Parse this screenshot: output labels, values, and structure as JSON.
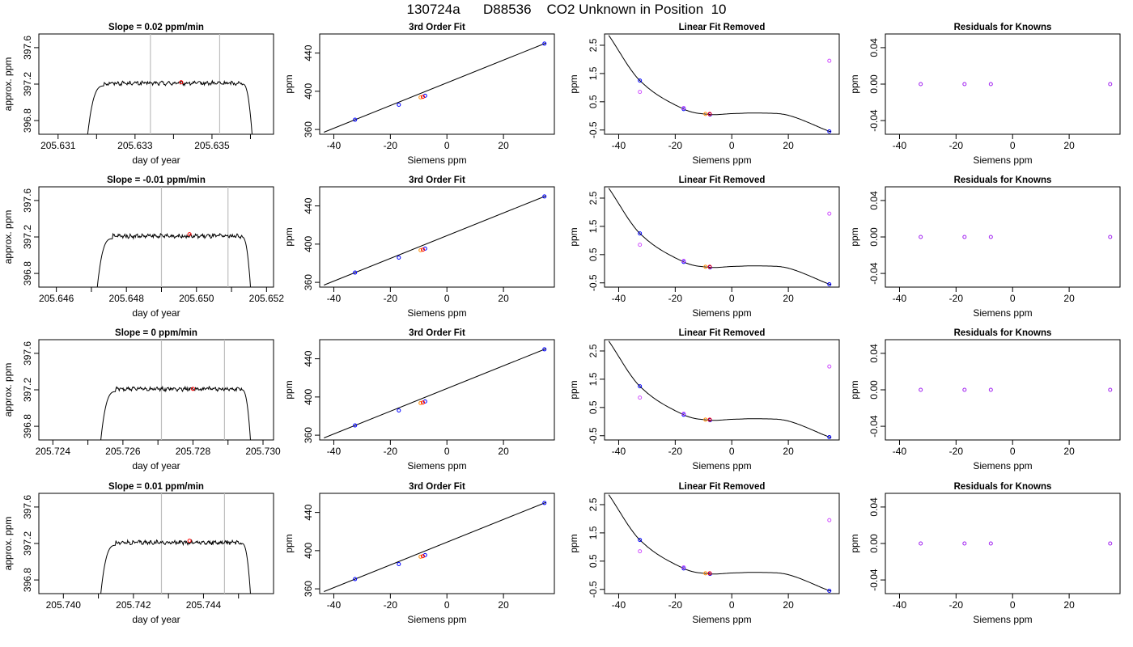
{
  "page_title": "130724a      D88536    CO2 Unknown in Position  10",
  "colors": {
    "axis": "#000000",
    "trace": "#000000",
    "marker_line": "#bebebe",
    "highlight": "#ff0000",
    "known_blue": "#0000ff",
    "known_orange": "#ff8c00",
    "residual_purple": "#a020f0",
    "unknown_magenta": "#d050ff"
  },
  "chart_data": [
    {
      "type": "line",
      "row": 0,
      "panel": "trace",
      "title": "Slope =  0.02  ppm/min",
      "xlabel": "day of year",
      "ylabel": "approx. ppm",
      "xlim": [
        205.6305,
        205.6366
      ],
      "ylim": [
        396.65,
        397.75
      ],
      "xticks": [
        205.631,
        205.632,
        205.633,
        205.634,
        205.635,
        205.636
      ],
      "xtick_labels": [
        "205.631",
        "",
        "205.633",
        "",
        "205.635",
        ""
      ],
      "yticks": [
        396.8,
        397.2,
        397.6
      ],
      "ytick_labels": [
        "396.8",
        "397.2",
        "397.6"
      ],
      "vlines": [
        205.6334,
        205.6352
      ],
      "highlight": {
        "x": 205.6342,
        "y": 397.22
      },
      "t_start": 205.6317,
      "t_plateau": 205.6322,
      "t_drop": 205.6358,
      "t_end": 205.6361
    },
    {
      "type": "line",
      "row": 0,
      "panel": "fit",
      "title": "3rd Order Fit",
      "xlabel": "Siemens ppm",
      "ylabel": "ppm",
      "xlim": [
        -45,
        38
      ],
      "ylim": [
        355,
        460
      ],
      "xticks": [
        -40,
        -20,
        0,
        20
      ],
      "yticks": [
        360,
        400,
        440
      ]
    },
    {
      "type": "line",
      "row": 0,
      "panel": "resid",
      "title": "Linear Fit Removed",
      "xlabel": "Siemens ppm",
      "ylabel": "ppm",
      "xlim": [
        -45,
        38
      ],
      "ylim": [
        -0.65,
        2.9
      ],
      "xticks": [
        -40,
        -20,
        0,
        20
      ],
      "yticks": [
        -0.5,
        0.5,
        1.5,
        2.5
      ]
    },
    {
      "type": "scatter",
      "row": 0,
      "panel": "known",
      "title": "Residuals for Knowns",
      "xlabel": "Siemens ppm",
      "ylabel": "ppm",
      "xlim": [
        -45,
        38
      ],
      "ylim": [
        -0.055,
        0.055
      ],
      "xticks": [
        -40,
        -20,
        0,
        20
      ],
      "yticks": [
        -0.04,
        0.0,
        0.04
      ],
      "ytick_labels": [
        "-0.04",
        "0.00",
        "0.04"
      ]
    },
    {
      "type": "line",
      "row": 1,
      "panel": "trace",
      "title": "Slope =  -0.01  ppm/min",
      "xlabel": "day of year",
      "ylabel": "approx. ppm",
      "xlim": [
        205.6455,
        205.6522
      ],
      "ylim": [
        396.65,
        397.75
      ],
      "xticks": [
        205.646,
        205.647,
        205.648,
        205.649,
        205.65,
        205.651,
        205.652
      ],
      "xtick_labels": [
        "205.646",
        "",
        "205.648",
        "",
        "205.650",
        "",
        "205.652"
      ],
      "yticks": [
        396.8,
        397.2,
        397.6
      ],
      "ytick_labels": [
        "396.8",
        "397.2",
        "397.6"
      ],
      "vlines": [
        205.649,
        205.6509
      ],
      "highlight": {
        "x": 205.6498,
        "y": 397.23
      },
      "t_start": 205.6471,
      "t_plateau": 205.6476,
      "t_drop": 205.6513,
      "t_end": 205.6516
    },
    {
      "type": "line",
      "row": 1,
      "panel": "fit",
      "title": "3rd Order Fit",
      "xlabel": "Siemens ppm",
      "ylabel": "ppm",
      "xlim": [
        -45,
        38
      ],
      "ylim": [
        355,
        460
      ],
      "xticks": [
        -40,
        -20,
        0,
        20
      ],
      "yticks": [
        360,
        400,
        440
      ]
    },
    {
      "type": "line",
      "row": 1,
      "panel": "resid",
      "title": "Linear Fit Removed",
      "xlabel": "Siemens ppm",
      "ylabel": "ppm",
      "xlim": [
        -45,
        38
      ],
      "ylim": [
        -0.65,
        2.9
      ],
      "xticks": [
        -40,
        -20,
        0,
        20
      ],
      "yticks": [
        -0.5,
        0.5,
        1.5,
        2.5
      ]
    },
    {
      "type": "scatter",
      "row": 1,
      "panel": "known",
      "title": "Residuals for Knowns",
      "xlabel": "Siemens ppm",
      "ylabel": "ppm",
      "xlim": [
        -45,
        38
      ],
      "ylim": [
        -0.055,
        0.055
      ],
      "xticks": [
        -40,
        -20,
        0,
        20
      ],
      "yticks": [
        -0.04,
        0.0,
        0.04
      ],
      "ytick_labels": [
        "-0.04",
        "0.00",
        "0.04"
      ]
    },
    {
      "type": "line",
      "row": 2,
      "panel": "trace",
      "title": "Slope =  0  ppm/min",
      "xlabel": "day of year",
      "ylabel": "approx. ppm",
      "xlim": [
        205.7236,
        205.7303
      ],
      "ylim": [
        396.65,
        397.75
      ],
      "xticks": [
        205.724,
        205.725,
        205.726,
        205.727,
        205.728,
        205.729,
        205.73
      ],
      "xtick_labels": [
        "205.724",
        "",
        "205.726",
        "",
        "205.728",
        "",
        "205.730"
      ],
      "yticks": [
        396.8,
        397.2,
        397.6
      ],
      "ytick_labels": [
        "396.8",
        "397.2",
        "397.6"
      ],
      "vlines": [
        205.7271,
        205.7289
      ],
      "highlight": {
        "x": 205.728,
        "y": 397.21
      },
      "t_start": 205.7253,
      "t_plateau": 205.7258,
      "t_drop": 205.7294,
      "t_end": 205.7297
    },
    {
      "type": "line",
      "row": 2,
      "panel": "fit",
      "title": "3rd Order Fit",
      "xlabel": "Siemens ppm",
      "ylabel": "ppm",
      "xlim": [
        -45,
        38
      ],
      "ylim": [
        355,
        460
      ],
      "xticks": [
        -40,
        -20,
        0,
        20
      ],
      "yticks": [
        360,
        400,
        440
      ]
    },
    {
      "type": "line",
      "row": 2,
      "panel": "resid",
      "title": "Linear Fit Removed",
      "xlabel": "Siemens ppm",
      "ylabel": "ppm",
      "xlim": [
        -45,
        38
      ],
      "ylim": [
        -0.65,
        2.9
      ],
      "xticks": [
        -40,
        -20,
        0,
        20
      ],
      "yticks": [
        -0.5,
        0.5,
        1.5,
        2.5
      ]
    },
    {
      "type": "scatter",
      "row": 2,
      "panel": "known",
      "title": "Residuals for Knowns",
      "xlabel": "Siemens ppm",
      "ylabel": "ppm",
      "xlim": [
        -45,
        38
      ],
      "ylim": [
        -0.055,
        0.055
      ],
      "xticks": [
        -40,
        -20,
        0,
        20
      ],
      "yticks": [
        -0.04,
        0.0,
        0.04
      ],
      "ytick_labels": [
        "-0.04",
        "0.00",
        "0.04"
      ]
    },
    {
      "type": "line",
      "row": 3,
      "panel": "trace",
      "title": "Slope =  0.01  ppm/min",
      "xlabel": "day of year",
      "ylabel": "approx. ppm",
      "xlim": [
        205.7393,
        205.746
      ],
      "ylim": [
        396.65,
        397.75
      ],
      "xticks": [
        205.74,
        205.741,
        205.742,
        205.743,
        205.744,
        205.745
      ],
      "xtick_labels": [
        "205.740",
        "",
        "205.742",
        "",
        "205.744",
        ""
      ],
      "yticks": [
        396.8,
        397.2,
        397.6
      ],
      "ytick_labels": [
        "396.8",
        "397.2",
        "397.6"
      ],
      "vlines": [
        205.7428,
        205.7446
      ],
      "highlight": {
        "x": 205.7436,
        "y": 397.23
      },
      "t_start": 205.741,
      "t_plateau": 205.7415,
      "t_drop": 205.7451,
      "t_end": 205.7454
    },
    {
      "type": "line",
      "row": 3,
      "panel": "fit",
      "title": "3rd Order Fit",
      "xlabel": "Siemens ppm",
      "ylabel": "ppm",
      "xlim": [
        -45,
        38
      ],
      "ylim": [
        355,
        460
      ],
      "xticks": [
        -40,
        -20,
        0,
        20
      ],
      "yticks": [
        360,
        400,
        440
      ]
    },
    {
      "type": "line",
      "row": 3,
      "panel": "resid",
      "title": "Linear Fit Removed",
      "xlabel": "Siemens ppm",
      "ylabel": "ppm",
      "xlim": [
        -45,
        38
      ],
      "ylim": [
        -0.65,
        2.9
      ],
      "xticks": [
        -40,
        -20,
        0,
        20
      ],
      "yticks": [
        -0.5,
        0.5,
        1.5,
        2.5
      ]
    },
    {
      "type": "scatter",
      "row": 3,
      "panel": "known",
      "title": "Residuals for Knowns",
      "xlabel": "Siemens ppm",
      "ylabel": "ppm",
      "xlim": [
        -45,
        38
      ],
      "ylim": [
        -0.055,
        0.055
      ],
      "xticks": [
        -40,
        -20,
        0,
        20
      ],
      "yticks": [
        -0.04,
        0.0,
        0.04
      ],
      "ytick_labels": [
        "-0.04",
        "0.00",
        "0.04"
      ]
    }
  ],
  "fit_points": {
    "knowns_x": [
      -32.5,
      -17.0,
      -7.7,
      34.5
    ],
    "knowns_y": [
      370.2,
      385.9,
      395.3,
      449.9
    ],
    "unknown": {
      "x": -9.3,
      "y": 393.6
    }
  },
  "resid_points": {
    "knowns_x": [
      -32.5,
      -17.0,
      -7.7,
      34.5
    ],
    "knowns_y": [
      1.25,
      0.24,
      0.05,
      -0.55
    ],
    "unknown": {
      "x": -9.3,
      "y": 0.07
    },
    "outliers": [
      {
        "x": -32.5,
        "y": 0.85
      },
      {
        "x": -17.0,
        "y": 0.28
      },
      {
        "x": 34.5,
        "y": 1.95
      }
    ],
    "curve_range": [
      -43.5,
      35
    ]
  },
  "known_residuals": {
    "x": [
      -32.5,
      -17.0,
      -7.7,
      34.5
    ],
    "y": [
      0.0,
      0.0,
      0.0,
      0.0
    ]
  }
}
